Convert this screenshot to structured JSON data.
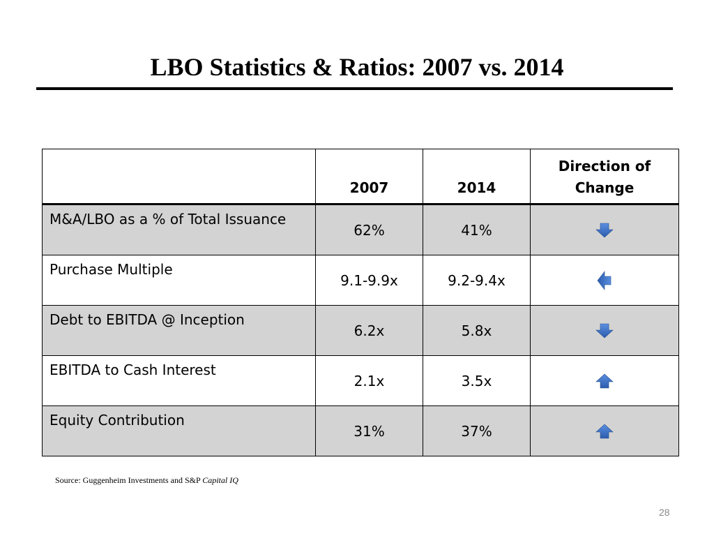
{
  "title": "LBO Statistics & Ratios: 2007 vs. 2014",
  "table": {
    "headers": {
      "label": "",
      "col_2007": "2007",
      "col_2014": "2014",
      "direction_line1": "Direction of",
      "direction_line2": "Change"
    },
    "rows": [
      {
        "metric": "M&A/LBO as a % of Total Issuance",
        "v2007": "62%",
        "v2014": "41%",
        "direction": "down",
        "direction_icon": "arrow-down-icon"
      },
      {
        "metric": "Purchase Multiple",
        "v2007": "9.1-9.9x",
        "v2014": "9.2-9.4x",
        "direction": "left",
        "direction_icon": "arrow-left-icon"
      },
      {
        "metric": "Debt to EBITDA @ Inception",
        "v2007": "6.2x",
        "v2014": "5.8x",
        "direction": "down",
        "direction_icon": "arrow-down-icon"
      },
      {
        "metric": "EBITDA to Cash Interest",
        "v2007": "2.1x",
        "v2014": "3.5x",
        "direction": "up",
        "direction_icon": "arrow-up-icon"
      },
      {
        "metric": "Equity Contribution",
        "v2007": "31%",
        "v2014": "37%",
        "direction": "up",
        "direction_icon": "arrow-up-icon"
      }
    ]
  },
  "source": {
    "prefix": "Source: Guggenheim Investments and S&P ",
    "italic": "Capital IQ"
  },
  "page_number": "28",
  "colors": {
    "shaded_row": "#d3d3d3",
    "arrow_fill": "#3a6fc9"
  }
}
